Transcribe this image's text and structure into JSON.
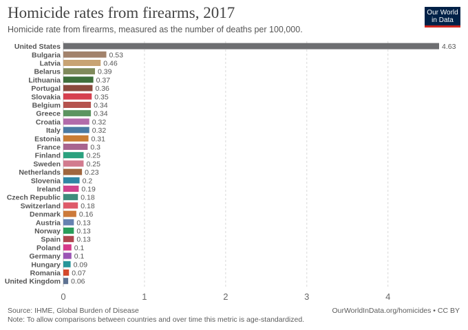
{
  "header": {
    "title": "Homicide rates from firearms, 2017",
    "subtitle": "Homicide rate from firearms, measured as the number of deaths per 100,000."
  },
  "logo": {
    "line1": "Our World",
    "line2": "in Data"
  },
  "footer": {
    "source": "Source: IHME, Global Burden of Disease",
    "note": "Note: To allow comparisons between countries and over time this metric is age-standardized.",
    "url": "OurWorldInData.org/homicides • CC BY"
  },
  "chart_data": {
    "type": "bar",
    "orientation": "horizontal",
    "title": "Homicide rates from firearms, 2017",
    "xlim": [
      0,
      4.63
    ],
    "xticks": [
      0,
      1,
      2,
      3,
      4
    ],
    "grid": true,
    "categories": [
      "United States",
      "Bulgaria",
      "Latvia",
      "Belarus",
      "Lithuania",
      "Portugal",
      "Slovakia",
      "Belgium",
      "Greece",
      "Croatia",
      "Italy",
      "Estonia",
      "France",
      "Finland",
      "Sweden",
      "Netherlands",
      "Slovenia",
      "Ireland",
      "Czech Republic",
      "Switzerland",
      "Denmark",
      "Austria",
      "Norway",
      "Spain",
      "Poland",
      "Germany",
      "Hungary",
      "Romania",
      "United Kingdom"
    ],
    "values": [
      4.63,
      0.53,
      0.46,
      0.39,
      0.37,
      0.36,
      0.35,
      0.34,
      0.34,
      0.32,
      0.32,
      0.31,
      0.3,
      0.25,
      0.25,
      0.23,
      0.2,
      0.19,
      0.18,
      0.18,
      0.16,
      0.13,
      0.13,
      0.13,
      0.1,
      0.1,
      0.09,
      0.07,
      0.06
    ],
    "value_labels": [
      "4.63",
      "0.53",
      "0.46",
      "0.39",
      "0.37",
      "0.36",
      "0.35",
      "0.34",
      "0.34",
      "0.32",
      "0.32",
      "0.31",
      "0.3",
      "0.25",
      "0.25",
      "0.23",
      "0.2",
      "0.19",
      "0.18",
      "0.18",
      "0.16",
      "0.13",
      "0.13",
      "0.13",
      "0.1",
      "0.1",
      "0.09",
      "0.07",
      "0.06"
    ],
    "colors": [
      "#6d6e71",
      "#a2826b",
      "#c8a373",
      "#7f8a5b",
      "#3e6f3b",
      "#8a4a3d",
      "#d6404f",
      "#b5534e",
      "#5c9460",
      "#b26baa",
      "#4a7aa3",
      "#c97d35",
      "#a8648f",
      "#2aa17e",
      "#d27b8e",
      "#a0663e",
      "#2f86a4",
      "#d0438d",
      "#3e8c7c",
      "#de5a69",
      "#cc7a3a",
      "#6682b0",
      "#2a9d5a",
      "#b0464f",
      "#d63a8a",
      "#9b55b5",
      "#27969a",
      "#d4492c",
      "#5e7292"
    ]
  }
}
